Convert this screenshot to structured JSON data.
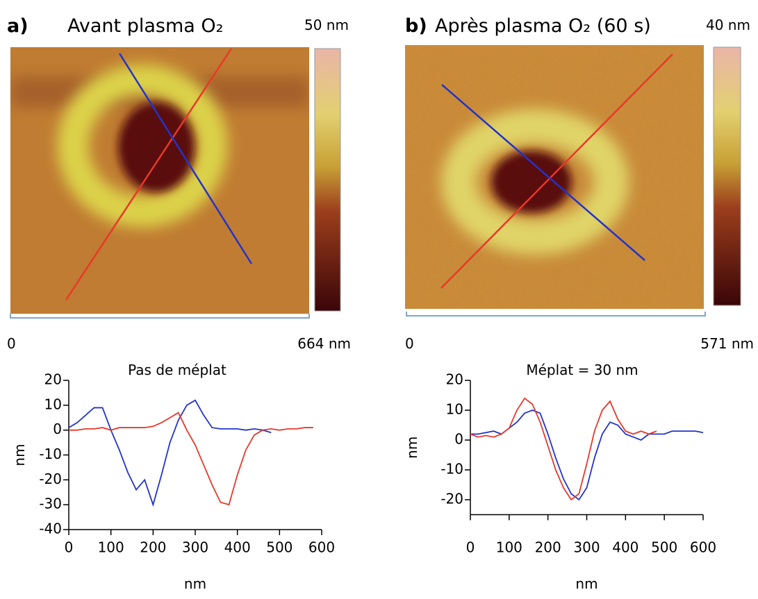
{
  "panels": [
    {
      "label": "a)",
      "title": "Avant plasma O₂",
      "colorbar_max": "50 nm",
      "scale_start": "0",
      "scale_end": "664 nm"
    },
    {
      "label": "b)",
      "title": "Après plasma O₂ (60 s)",
      "colorbar_max": "40 nm",
      "scale_start": "0",
      "scale_end": "571 nm"
    }
  ],
  "chart_data": [
    {
      "type": "line",
      "title": "Pas de méplat",
      "xlabel": "nm",
      "ylabel": "nm",
      "x": [
        0,
        20,
        40,
        60,
        80,
        100,
        120,
        140,
        160,
        180,
        200,
        220,
        240,
        260,
        280,
        300,
        320,
        340,
        360,
        380,
        400,
        420,
        440,
        460,
        480,
        500,
        520,
        540,
        560,
        580
      ],
      "xlim": [
        0,
        600
      ],
      "xticks": [
        0,
        100,
        200,
        300,
        400,
        500,
        600
      ],
      "ylim": [
        -40,
        20
      ],
      "yticks": [
        -40,
        -30,
        -20,
        -10,
        0,
        10,
        20
      ],
      "series": [
        {
          "color": "#2233cc",
          "values": [
            1,
            3,
            6,
            9,
            9,
            0,
            -8,
            -17,
            -24,
            -20,
            -30,
            -18,
            -5,
            4,
            10,
            12,
            6,
            1,
            0.5,
            0.5,
            0.5,
            0,
            0.5,
            0,
            -1,
            null,
            null,
            null,
            null,
            null
          ]
        },
        {
          "color": "#e8382a",
          "values": [
            0,
            0,
            0.5,
            0.5,
            1,
            0,
            1,
            1,
            1,
            1,
            1.5,
            3,
            5,
            7,
            0,
            -6,
            -14,
            -22,
            -29,
            -30,
            -18,
            -8,
            -2,
            0,
            0.5,
            0,
            0.5,
            0.5,
            1,
            1
          ]
        }
      ]
    },
    {
      "type": "line",
      "title": "Méplat = 30 nm",
      "xlabel": "nm",
      "ylabel": "nm",
      "x": [
        0,
        20,
        40,
        60,
        80,
        100,
        120,
        140,
        160,
        180,
        200,
        220,
        240,
        260,
        280,
        300,
        320,
        340,
        360,
        380,
        400,
        420,
        440,
        460,
        480,
        500,
        520,
        540,
        560,
        580,
        600
      ],
      "xlim": [
        0,
        600
      ],
      "xticks": [
        0,
        100,
        200,
        300,
        400,
        500,
        600
      ],
      "ylim": [
        -25,
        20
      ],
      "yticks": [
        -20,
        -10,
        0,
        10,
        20
      ],
      "series": [
        {
          "color": "#2233cc",
          "values": [
            2,
            2,
            2.5,
            3,
            2,
            4,
            6,
            9,
            10,
            9,
            2,
            -6,
            -13,
            -18,
            -20,
            -16,
            -6,
            2,
            6,
            5,
            2,
            1,
            0,
            2,
            2,
            2,
            3,
            3,
            3,
            3,
            2.5
          ]
        },
        {
          "color": "#e8382a",
          "values": [
            2,
            1,
            1.5,
            1,
            2,
            4,
            10,
            14,
            12,
            6,
            -2,
            -10,
            -16,
            -20,
            -18,
            -8,
            3,
            10,
            13,
            7,
            3,
            2,
            3,
            2,
            3,
            null,
            null,
            null,
            null,
            null,
            null
          ]
        }
      ]
    }
  ]
}
